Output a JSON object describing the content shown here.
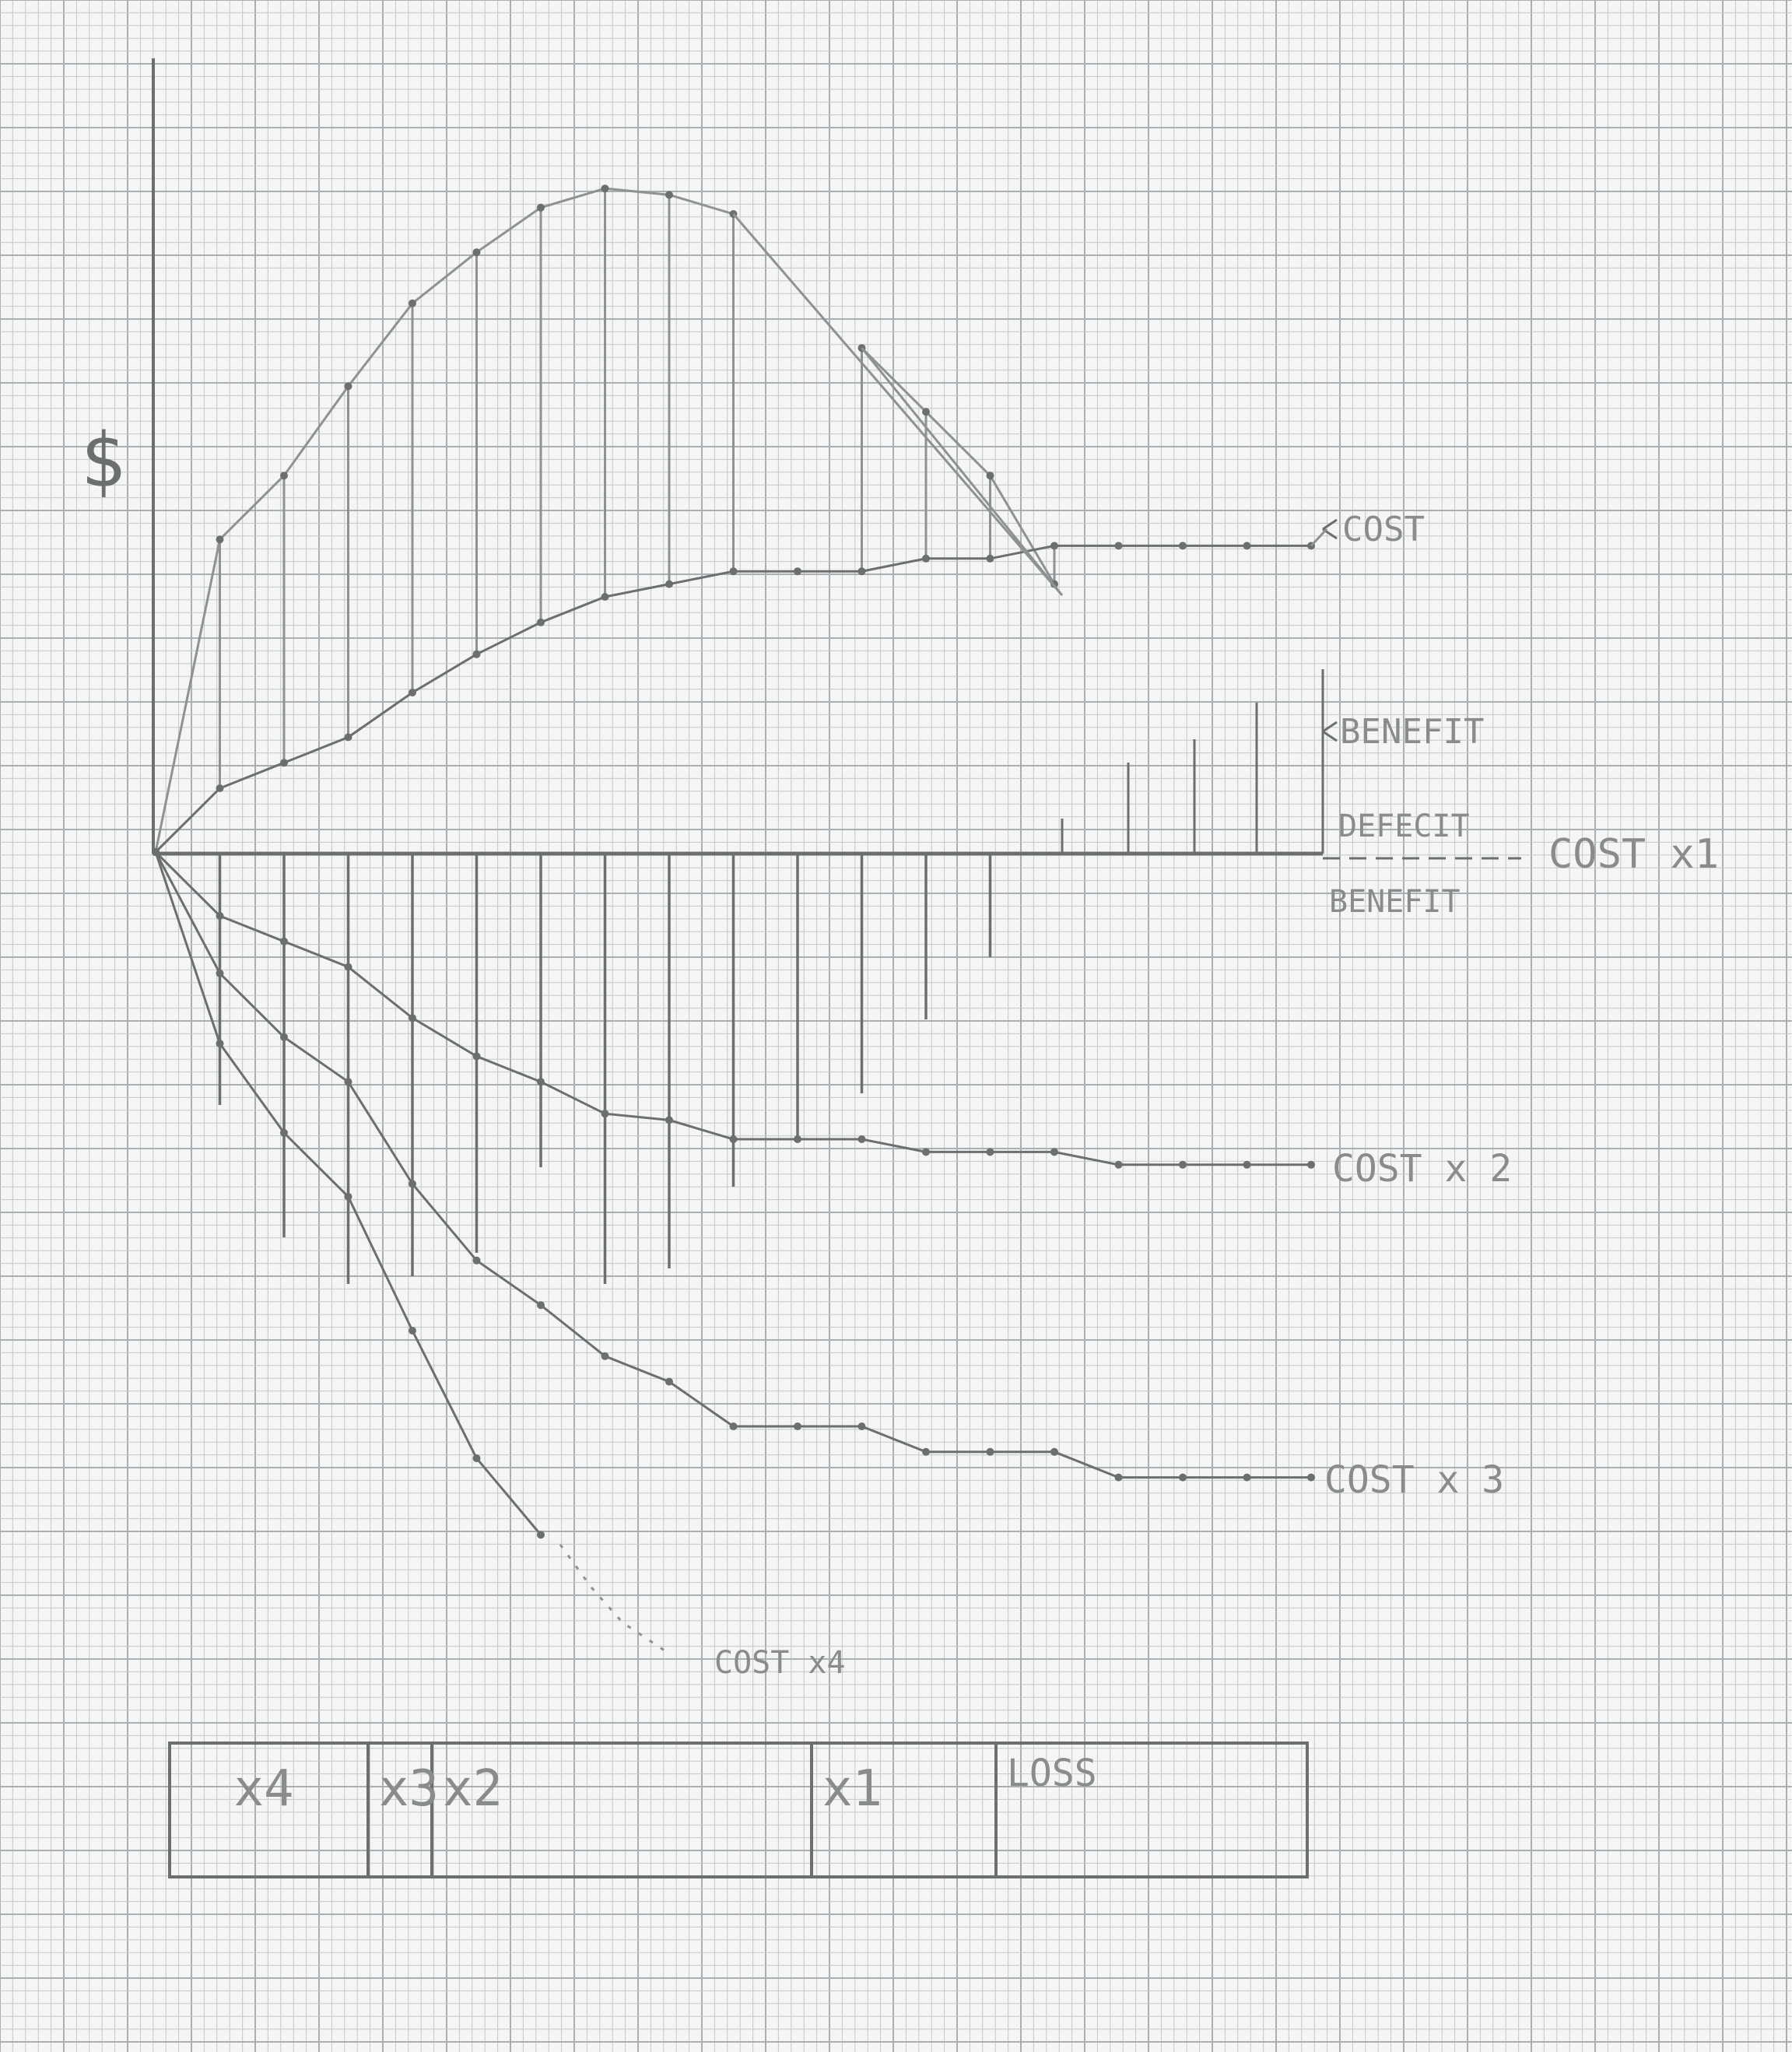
{
  "chart_data": {
    "type": "line",
    "ylabel": "$",
    "xlabel": "",
    "x": [
      0,
      1,
      2,
      3,
      4,
      5,
      6,
      7,
      8,
      9,
      10,
      11,
      12,
      13,
      14,
      15,
      16,
      17,
      18
    ],
    "ylim": [
      -11,
      11
    ],
    "grid": true,
    "series": [
      {
        "name": "COST",
        "values": [
          0,
          4.9,
          5.9,
          7.3,
          8.6,
          9.4,
          10.1,
          10.4,
          10.3,
          10.0,
          null,
          7.9,
          6.9,
          5.9,
          4.2,
          null,
          null,
          null,
          null
        ]
      },
      {
        "name": "BENEFIT",
        "values": [
          0,
          1.0,
          1.4,
          1.8,
          2.5,
          3.1,
          3.6,
          4.0,
          4.2,
          4.4,
          4.4,
          4.4,
          4.6,
          4.6,
          4.8,
          4.8,
          4.8,
          4.8,
          4.8
        ]
      },
      {
        "name": "COST x 2",
        "values": [
          0,
          -1.0,
          -1.4,
          -1.8,
          -2.6,
          -3.2,
          -3.6,
          -4.1,
          -4.2,
          -4.5,
          -4.5,
          -4.5,
          -4.7,
          -4.7,
          -4.7,
          -4.9,
          -4.9,
          -4.9,
          -4.9
        ]
      },
      {
        "name": "COST x 3",
        "values": [
          0,
          -1.9,
          -2.9,
          -3.6,
          -5.2,
          -6.4,
          -7.1,
          -7.9,
          -8.3,
          -9.0,
          -9.0,
          -9.0,
          -9.4,
          -9.4,
          -9.4,
          -9.8,
          -9.8,
          -9.8,
          -9.8
        ]
      },
      {
        "name": "COST x4",
        "values": [
          0,
          -3.0,
          -4.4,
          -5.4,
          -7.5,
          -9.5,
          -10.7,
          null,
          null,
          null,
          null,
          null,
          null,
          null,
          null,
          null,
          null,
          null,
          null
        ]
      }
    ],
    "annotations": [
      "DEFECIT",
      "BENEFIT",
      "COST x1"
    ],
    "band": {
      "segments": [
        {
          "label": "x4",
          "from": 0,
          "to": 3
        },
        {
          "label": "x3",
          "from": 3,
          "to": 4
        },
        {
          "label": "x2",
          "from": 4,
          "to": 10
        },
        {
          "label": "x1",
          "from": 10,
          "to": 13
        },
        {
          "label": "LOSS",
          "from": 13,
          "to": 18
        }
      ]
    },
    "labels": {
      "cost": "COST",
      "benefit": "BENEFIT",
      "defecit": "DEFECIT",
      "cost_x1": "COST x1",
      "benefit_below": "BENEFIT",
      "cost_x2": "COST x 2",
      "cost_x3": "COST x 3",
      "cost_x4": "COST x4",
      "band_x4": "x4",
      "band_x3": "x3",
      "band_x2": "x2",
      "band_x1": "x1",
      "band_loss": "LOSS"
    }
  },
  "colors": {
    "paper": "#f4f5f4",
    "grid_minor": "#c3c9cb",
    "grid_major": "#a9b0b3",
    "pencil": "#6c6f70",
    "pencil_light": "#8e9293"
  }
}
